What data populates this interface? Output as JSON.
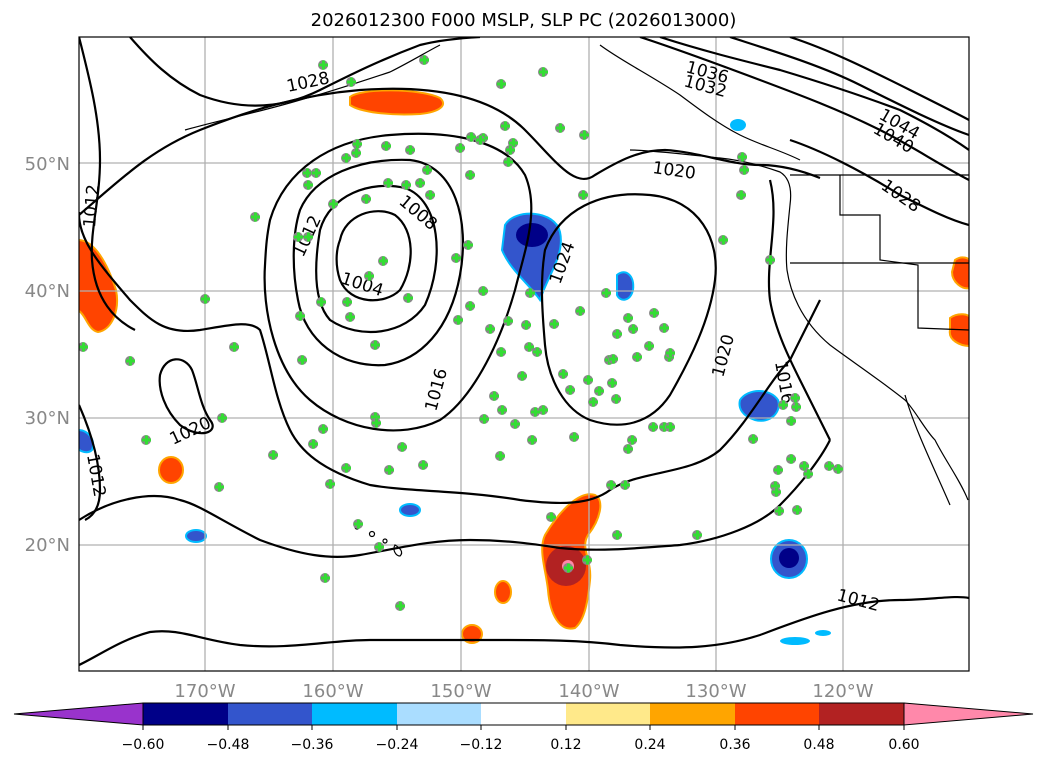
{
  "title": "2026012300 F000 MSLP, SLP PC (2026013000)",
  "map": {
    "lat_labels": [
      "50°N",
      "40°N",
      "30°N",
      "20°N"
    ],
    "lon_labels": [
      "170°W",
      "160°W",
      "150°W",
      "140°W",
      "130°W",
      "120°W"
    ],
    "isobar_labels": [
      "1028",
      "1036",
      "1032",
      "1044",
      "1040",
      "1020",
      "1028",
      "1008",
      "1012",
      "1004",
      "1012",
      "1024",
      "1016",
      "1020",
      "1016",
      "1020",
      "1012",
      "1012"
    ],
    "colors": {
      "grid": "#b0b0b0",
      "isobar": "#000000",
      "marker_fill": "#33dd33",
      "marker_edge": "#888888"
    }
  },
  "colorbar": {
    "ticks": [
      "−0.60",
      "−0.48",
      "−0.36",
      "−0.24",
      "−0.12",
      "0.12",
      "0.24",
      "0.36",
      "0.48",
      "0.60"
    ],
    "colors": [
      "#9933cc",
      "#000088",
      "#3355cc",
      "#00bbff",
      "#aaddff",
      "#ffffff",
      "#ffe98a",
      "#ffa500",
      "#ff4400",
      "#b22222",
      "#ff88aa"
    ]
  }
}
